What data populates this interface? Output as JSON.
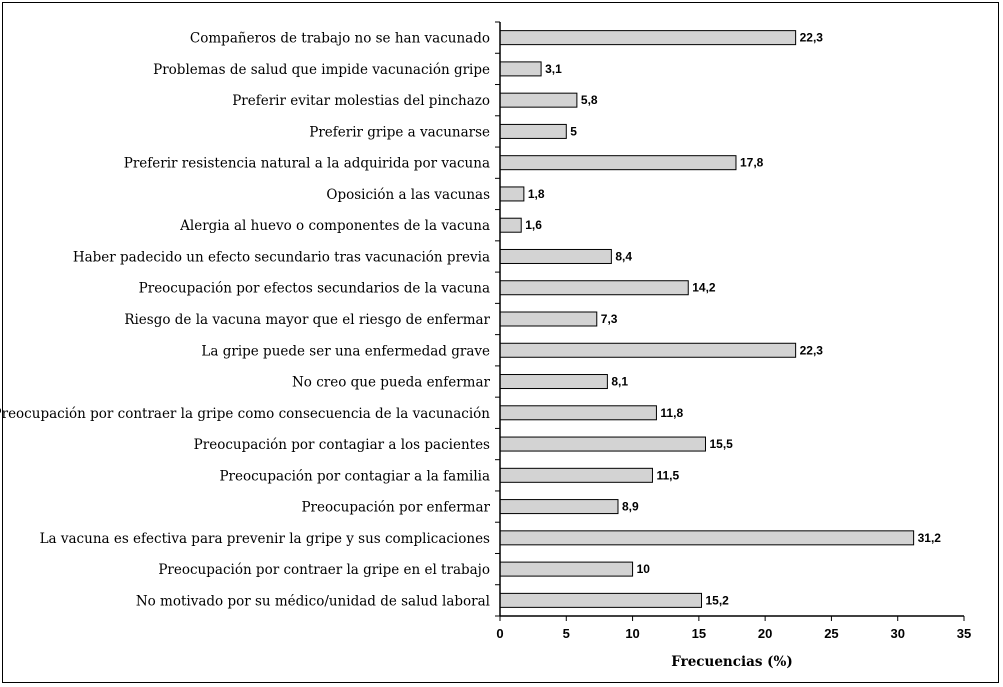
{
  "chart_data": {
    "type": "bar",
    "orientation": "horizontal",
    "xlabel": "Frecuencias (%)",
    "xlim": [
      0,
      35
    ],
    "xticks": [
      0,
      5,
      10,
      15,
      20,
      25,
      30,
      35
    ],
    "bar_color": "#d3d3d3",
    "categories": [
      "Compañeros de trabajo no se han vacunado",
      "Problemas de salud que impide vacunación gripe",
      "Preferir evitar molestias del pinchazo",
      "Preferir gripe a vacunarse",
      "Preferir resistencia natural a la adquirida por vacuna",
      "Oposición a las vacunas",
      "Alergia al huevo o componentes de la vacuna",
      "Haber padecido un efecto secundario tras vacunación previa",
      "Preocupación por efectos secundarios de la vacuna",
      "Riesgo de la vacuna mayor que el riesgo de enfermar",
      "La gripe puede ser una enfermedad grave",
      "No creo que  pueda enfermar",
      "Preocupación por contraer la gripe como consecuencia de la vacunación",
      "Preocupación por contagiar a los pacientes",
      "Preocupación por contagiar a la familia",
      "Preocupación por enfermar",
      "La vacuna es efectiva para prevenir la gripe y sus complicaciones",
      "Preocupación por contraer la gripe en el trabajo",
      "No motivado por su médico/unidad de salud laboral"
    ],
    "values": [
      22.3,
      3.1,
      5.8,
      5,
      17.8,
      1.8,
      1.6,
      8.4,
      14.2,
      7.3,
      22.3,
      8.1,
      11.8,
      15.5,
      11.5,
      8.9,
      31.2,
      10,
      15.2
    ],
    "value_labels": [
      "22,3",
      "3,1",
      "5,8",
      "5",
      "17,8",
      "1,8",
      "1,6",
      "8,4",
      "14,2",
      "7,3",
      "22,3",
      "8,1",
      "11,8",
      "15,5",
      "11,5",
      "8,9",
      "31,2",
      "10",
      "15,2"
    ],
    "grid": false,
    "legend": "none"
  }
}
